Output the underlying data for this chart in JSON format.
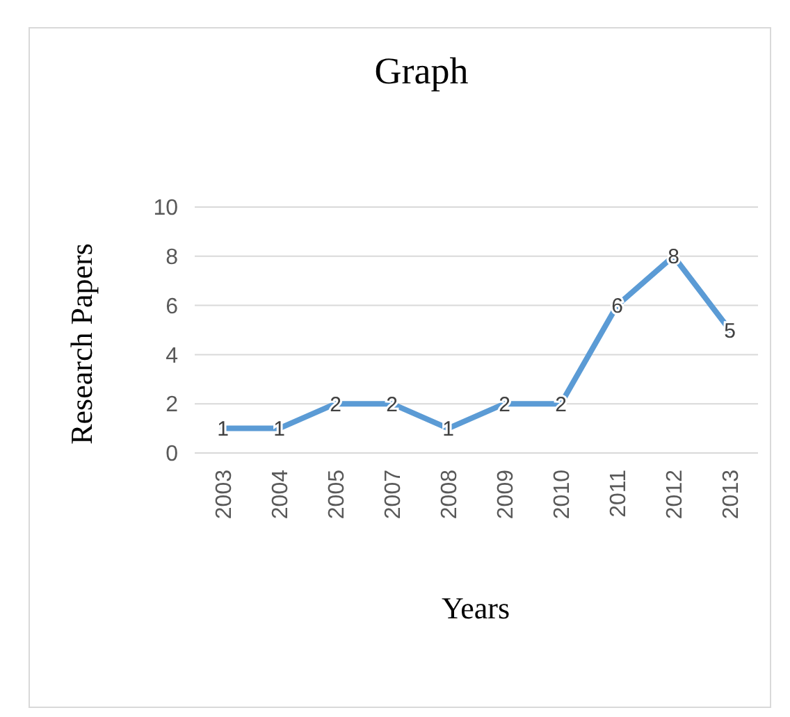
{
  "chart_data": {
    "type": "line",
    "title": "Graph",
    "xlabel": "Years",
    "ylabel": "Research Papers",
    "categories": [
      "2003",
      "2004",
      "2005",
      "2007",
      "2008",
      "2009",
      "2010",
      "2011",
      "2012",
      "2013"
    ],
    "series": [
      {
        "color": "#5b9bd5",
        "values": [
          1,
          1,
          2,
          2,
          1,
          2,
          2,
          6,
          8,
          5
        ]
      }
    ],
    "ylim": [
      0,
      10
    ],
    "yticks": [
      0,
      2,
      4,
      6,
      8,
      10
    ],
    "grid": "y",
    "data_labels": true
  }
}
